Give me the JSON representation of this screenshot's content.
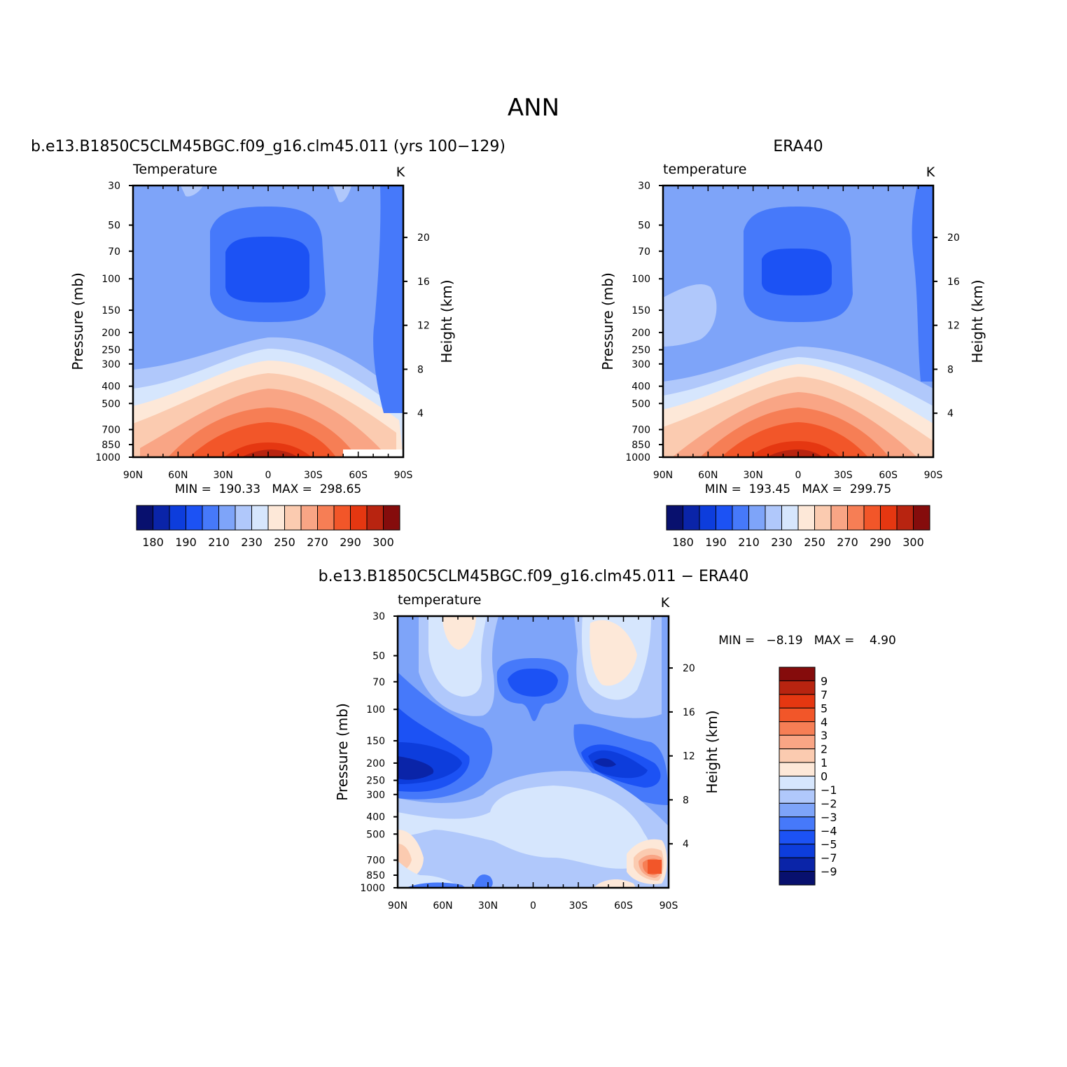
{
  "figure_title": "ANN",
  "panels": {
    "model": {
      "title": "b.e13.B1850C5CLM45BGC.f09_g16.clm45.011 (yrs 100−129)",
      "variable": "Temperature",
      "units": "K",
      "minmax": "MIN =  190.33   MAX =  298.65"
    },
    "obs": {
      "title": "ERA40",
      "variable": "temperature",
      "units": "K",
      "minmax": "MIN =  193.45   MAX =  299.75"
    },
    "diff": {
      "title": "b.e13.B1850C5CLM45BGC.f09_g16.clm45.011 − ERA40",
      "variable": "temperature",
      "units": "K",
      "minmax": "MIN =   −8.19   MAX =    4.90"
    }
  },
  "axes": {
    "pressure_label": "Pressure (mb)",
    "height_label": "Height (km)",
    "pressure_ticks": [
      "30",
      "50",
      "70",
      "100",
      "150",
      "200",
      "250",
      "300",
      "400",
      "500",
      "700",
      "850",
      "1000"
    ],
    "height_ticks": [
      "20",
      "16",
      "12",
      "8",
      "4"
    ],
    "lat_ticks": [
      "90N",
      "60N",
      "30N",
      "0",
      "30S",
      "60S",
      "90S"
    ]
  },
  "colorbars": {
    "full_labels": [
      "180",
      "190",
      "210",
      "230",
      "250",
      "270",
      "290",
      "300"
    ],
    "diff_labels": [
      "9",
      "7",
      "5",
      "4",
      "3",
      "2",
      "1",
      "0",
      "−1",
      "−2",
      "−3",
      "−4",
      "−5",
      "−7",
      "−9"
    ]
  },
  "colors": {
    "full_scale": [
      "#08106e",
      "#0a24a8",
      "#0d3ddc",
      "#1c52f4",
      "#4679fa",
      "#7ea4f9",
      "#b0c8fb",
      "#d6e6fd",
      "#fde8d8",
      "#fbcbb0",
      "#f9a585",
      "#f67e55",
      "#f25629",
      "#e53711",
      "#b82410",
      "#850c0c"
    ],
    "diff_scale": [
      "#850c0c",
      "#b82410",
      "#e53711",
      "#f25629",
      "#f67e55",
      "#f9a585",
      "#fbcbb0",
      "#fde8d8",
      "#d6e6fd",
      "#b0c8fb",
      "#7ea4f9",
      "#4679fa",
      "#1c52f4",
      "#0d3ddc",
      "#0a24a8",
      "#08106e"
    ]
  },
  "chart_data": [
    {
      "type": "heatmap",
      "title": "b.e13.B1850C5CLM45BGC.f09_g16.clm45.011 (yrs 100−129)",
      "subtitle": "Temperature",
      "units": "K",
      "xlabel": "",
      "ylabel": "Pressure (mb)",
      "y2label": "Height (km)",
      "x_ticks": [
        "90N",
        "60N",
        "30N",
        "0",
        "30S",
        "60S",
        "90S"
      ],
      "y_ticks_mb": [
        30,
        50,
        70,
        100,
        150,
        200,
        250,
        300,
        400,
        500,
        700,
        850,
        1000
      ],
      "contour_levels": [
        180,
        185,
        190,
        200,
        210,
        220,
        230,
        240,
        250,
        260,
        270,
        280,
        290,
        295,
        300
      ],
      "min": 190.33,
      "max": 298.65
    },
    {
      "type": "heatmap",
      "title": "ERA40",
      "subtitle": "temperature",
      "units": "K",
      "xlabel": "",
      "ylabel": "Pressure (mb)",
      "y2label": "Height (km)",
      "x_ticks": [
        "90N",
        "60N",
        "30N",
        "0",
        "30S",
        "60S",
        "90S"
      ],
      "y_ticks_mb": [
        30,
        50,
        70,
        100,
        150,
        200,
        250,
        300,
        400,
        500,
        700,
        850,
        1000
      ],
      "contour_levels": [
        180,
        185,
        190,
        200,
        210,
        220,
        230,
        240,
        250,
        260,
        270,
        280,
        290,
        295,
        300
      ],
      "min": 193.45,
      "max": 299.75
    },
    {
      "type": "heatmap",
      "title": "b.e13.B1850C5CLM45BGC.f09_g16.clm45.011 − ERA40",
      "subtitle": "temperature",
      "units": "K",
      "xlabel": "",
      "ylabel": "Pressure (mb)",
      "y2label": "Height (km)",
      "x_ticks": [
        "90N",
        "60N",
        "30N",
        "0",
        "30S",
        "60S",
        "90S"
      ],
      "y_ticks_mb": [
        30,
        50,
        70,
        100,
        150,
        200,
        250,
        300,
        400,
        500,
        700,
        850,
        1000
      ],
      "contour_levels": [
        -9,
        -7,
        -5,
        -4,
        -3,
        -2,
        -1,
        0,
        1,
        2,
        3,
        4,
        5,
        7,
        9
      ],
      "min": -8.19,
      "max": 4.9
    }
  ]
}
